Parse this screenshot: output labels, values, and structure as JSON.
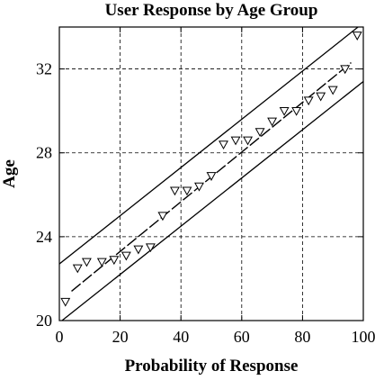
{
  "chart_data": {
    "type": "scatter",
    "title": "User Response by Age Group",
    "xlabel": "Probability of Response",
    "ylabel": "Age",
    "xlim": [
      0,
      100
    ],
    "ylim": [
      20,
      34
    ],
    "xticks": [
      0,
      20,
      40,
      60,
      80,
      100
    ],
    "yticks": [
      20,
      24,
      28,
      32
    ],
    "grid": true,
    "grid_style": "dashed",
    "marker": "open downward triangle",
    "series": [
      {
        "x": [
          2,
          6,
          9,
          14,
          18,
          22,
          26,
          30,
          34,
          38,
          42,
          46,
          50,
          54,
          58,
          62,
          66,
          70,
          74,
          78,
          82,
          86,
          90,
          94,
          98
        ],
        "y": [
          20.9,
          22.5,
          22.8,
          22.8,
          22.9,
          23.1,
          23.4,
          23.5,
          25.0,
          26.2,
          26.2,
          26.4,
          26.9,
          28.4,
          28.6,
          28.6,
          29.0,
          29.5,
          30.0,
          30.0,
          30.5,
          30.7,
          31.0,
          32.0,
          33.6
        ]
      }
    ],
    "fit_line": {
      "x": [
        4,
        96
      ],
      "y": [
        21.4,
        32.3
      ]
    },
    "upper_band": {
      "x": [
        0,
        100
      ],
      "y": [
        22.7,
        34.2
      ]
    },
    "lower_band": {
      "x": [
        0,
        100
      ],
      "y": [
        19.9,
        31.4
      ]
    }
  }
}
